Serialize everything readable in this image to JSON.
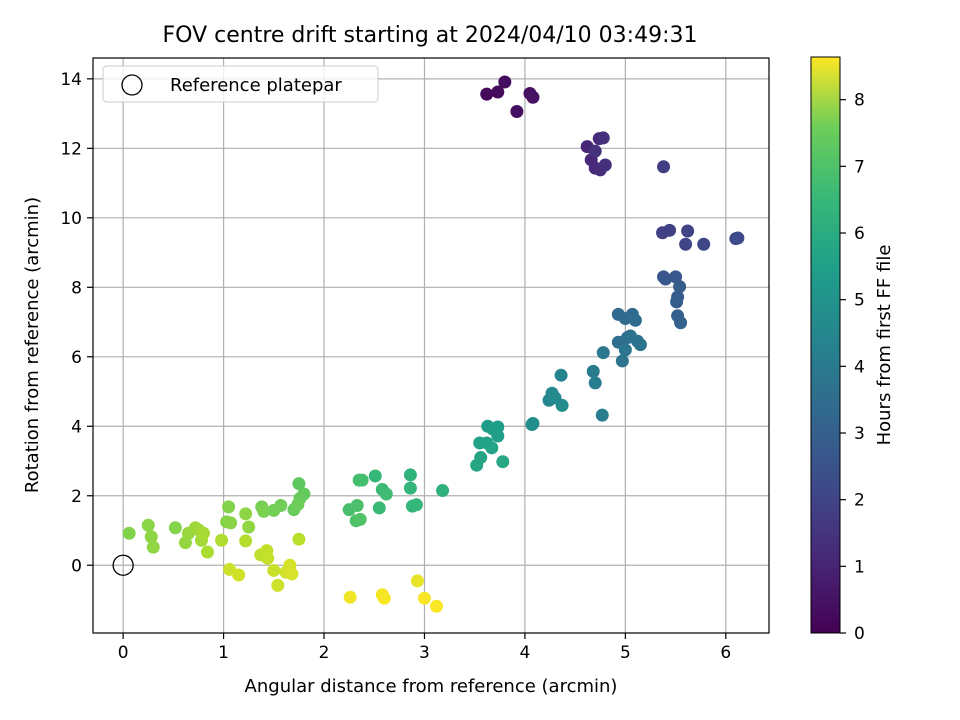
{
  "chart_data": {
    "type": "scatter",
    "title": "FOV centre drift starting at 2024/04/10 03:49:31",
    "xlabel": "Angular distance from reference (arcmin)",
    "ylabel": "Rotation from reference (arcmin)",
    "xlim": [
      -0.3,
      6.43
    ],
    "ylim": [
      -1.95,
      14.6
    ],
    "xticks": [
      0,
      1,
      2,
      3,
      4,
      5,
      6
    ],
    "yticks": [
      0,
      2,
      4,
      6,
      8,
      10,
      12,
      14
    ],
    "grid": true,
    "legend": {
      "placement": "top-left",
      "entries": [
        "Reference platepar"
      ]
    },
    "reference_point": {
      "x": 0,
      "y": 0,
      "marker": "open-circle"
    },
    "colorbar": {
      "label": "Hours from first FF file",
      "colormap": "viridis",
      "range": [
        0,
        8.64
      ],
      "ticks": [
        0,
        1,
        2,
        3,
        4,
        5,
        6,
        7,
        8
      ]
    },
    "points": [
      {
        "x": 3.62,
        "y": 13.56,
        "h": 0.2
      },
      {
        "x": 3.73,
        "y": 13.62,
        "h": 0.25
      },
      {
        "x": 3.8,
        "y": 13.91,
        "h": 0.3
      },
      {
        "x": 3.92,
        "y": 13.06,
        "h": 0.35
      },
      {
        "x": 4.05,
        "y": 13.58,
        "h": 0.4
      },
      {
        "x": 4.08,
        "y": 13.47,
        "h": 0.45
      },
      {
        "x": 4.62,
        "y": 12.05,
        "h": 0.9
      },
      {
        "x": 4.66,
        "y": 11.67,
        "h": 0.95
      },
      {
        "x": 4.7,
        "y": 11.43,
        "h": 1.0
      },
      {
        "x": 4.74,
        "y": 12.28,
        "h": 1.05
      },
      {
        "x": 4.75,
        "y": 11.38,
        "h": 1.1
      },
      {
        "x": 4.78,
        "y": 12.3,
        "h": 1.15
      },
      {
        "x": 4.8,
        "y": 11.52,
        "h": 1.2
      },
      {
        "x": 4.7,
        "y": 11.92,
        "h": 1.25
      },
      {
        "x": 5.38,
        "y": 11.47,
        "h": 1.6
      },
      {
        "x": 5.37,
        "y": 9.57,
        "h": 1.65
      },
      {
        "x": 5.44,
        "y": 9.64,
        "h": 1.7
      },
      {
        "x": 5.62,
        "y": 9.62,
        "h": 1.75
      },
      {
        "x": 5.6,
        "y": 9.24,
        "h": 1.8
      },
      {
        "x": 5.78,
        "y": 9.24,
        "h": 1.85
      },
      {
        "x": 6.1,
        "y": 9.4,
        "h": 1.9
      },
      {
        "x": 6.12,
        "y": 9.42,
        "h": 1.95
      },
      {
        "x": 5.38,
        "y": 8.3,
        "h": 2.3
      },
      {
        "x": 5.4,
        "y": 8.24,
        "h": 2.35
      },
      {
        "x": 5.5,
        "y": 8.3,
        "h": 2.4
      },
      {
        "x": 5.52,
        "y": 7.72,
        "h": 2.45
      },
      {
        "x": 5.54,
        "y": 8.02,
        "h": 2.5
      },
      {
        "x": 5.51,
        "y": 7.58,
        "h": 2.55
      },
      {
        "x": 5.52,
        "y": 7.18,
        "h": 2.6
      },
      {
        "x": 5.55,
        "y": 6.98,
        "h": 2.65
      },
      {
        "x": 4.93,
        "y": 7.22,
        "h": 2.9
      },
      {
        "x": 5.07,
        "y": 7.22,
        "h": 2.95
      },
      {
        "x": 5.0,
        "y": 7.1,
        "h": 3.0
      },
      {
        "x": 5.1,
        "y": 7.05,
        "h": 3.05
      },
      {
        "x": 4.93,
        "y": 6.42,
        "h": 3.1
      },
      {
        "x": 5.02,
        "y": 6.55,
        "h": 3.15
      },
      {
        "x": 5.05,
        "y": 6.6,
        "h": 3.2
      },
      {
        "x": 5.12,
        "y": 6.45,
        "h": 3.25
      },
      {
        "x": 5.15,
        "y": 6.35,
        "h": 3.3
      },
      {
        "x": 4.97,
        "y": 5.88,
        "h": 3.35
      },
      {
        "x": 5.0,
        "y": 6.2,
        "h": 3.4
      },
      {
        "x": 4.78,
        "y": 6.12,
        "h": 3.45
      },
      {
        "x": 4.68,
        "y": 5.58,
        "h": 3.6
      },
      {
        "x": 4.7,
        "y": 5.25,
        "h": 3.65
      },
      {
        "x": 4.77,
        "y": 4.32,
        "h": 3.7
      },
      {
        "x": 4.36,
        "y": 5.47,
        "h": 3.9
      },
      {
        "x": 4.24,
        "y": 4.75,
        "h": 4.0
      },
      {
        "x": 4.27,
        "y": 4.95,
        "h": 4.05
      },
      {
        "x": 4.3,
        "y": 4.82,
        "h": 4.1
      },
      {
        "x": 4.37,
        "y": 4.6,
        "h": 4.15
      },
      {
        "x": 4.07,
        "y": 4.05,
        "h": 4.25
      },
      {
        "x": 4.08,
        "y": 4.08,
        "h": 4.3
      },
      {
        "x": 3.63,
        "y": 4.0,
        "h": 4.7
      },
      {
        "x": 3.68,
        "y": 3.92,
        "h": 4.75
      },
      {
        "x": 3.73,
        "y": 3.98,
        "h": 4.8
      },
      {
        "x": 3.73,
        "y": 3.72,
        "h": 4.85
      },
      {
        "x": 3.55,
        "y": 3.52,
        "h": 4.9
      },
      {
        "x": 3.62,
        "y": 3.52,
        "h": 4.95
      },
      {
        "x": 3.67,
        "y": 3.38,
        "h": 5.0
      },
      {
        "x": 3.56,
        "y": 3.1,
        "h": 5.05
      },
      {
        "x": 3.52,
        "y": 2.88,
        "h": 5.1
      },
      {
        "x": 3.78,
        "y": 2.98,
        "h": 5.15
      },
      {
        "x": 3.18,
        "y": 2.15,
        "h": 5.5
      },
      {
        "x": 2.86,
        "y": 2.6,
        "h": 5.6
      },
      {
        "x": 2.86,
        "y": 2.22,
        "h": 5.65
      },
      {
        "x": 2.88,
        "y": 1.7,
        "h": 5.7
      },
      {
        "x": 2.92,
        "y": 1.74,
        "h": 5.75
      },
      {
        "x": 2.51,
        "y": 2.57,
        "h": 5.8
      },
      {
        "x": 2.55,
        "y": 1.65,
        "h": 5.85
      },
      {
        "x": 2.58,
        "y": 2.18,
        "h": 5.9
      },
      {
        "x": 2.62,
        "y": 2.05,
        "h": 5.95
      },
      {
        "x": 2.35,
        "y": 2.45,
        "h": 6.0
      },
      {
        "x": 2.38,
        "y": 2.45,
        "h": 6.05
      },
      {
        "x": 2.25,
        "y": 1.6,
        "h": 6.1
      },
      {
        "x": 2.33,
        "y": 1.72,
        "h": 6.15
      },
      {
        "x": 2.32,
        "y": 1.28,
        "h": 6.2
      },
      {
        "x": 2.36,
        "y": 1.32,
        "h": 6.25
      },
      {
        "x": 1.75,
        "y": 2.35,
        "h": 6.5
      },
      {
        "x": 1.8,
        "y": 2.05,
        "h": 6.55
      },
      {
        "x": 1.76,
        "y": 1.92,
        "h": 6.6
      },
      {
        "x": 1.7,
        "y": 1.6,
        "h": 6.65
      },
      {
        "x": 1.74,
        "y": 1.75,
        "h": 6.7
      },
      {
        "x": 1.57,
        "y": 1.72,
        "h": 6.75
      },
      {
        "x": 1.5,
        "y": 1.58,
        "h": 6.8
      },
      {
        "x": 1.38,
        "y": 1.68,
        "h": 6.85
      },
      {
        "x": 1.4,
        "y": 1.55,
        "h": 6.9
      },
      {
        "x": 1.05,
        "y": 1.68,
        "h": 7.0
      },
      {
        "x": 1.03,
        "y": 1.25,
        "h": 7.05
      },
      {
        "x": 1.07,
        "y": 1.22,
        "h": 7.1
      },
      {
        "x": 1.22,
        "y": 1.48,
        "h": 7.15
      },
      {
        "x": 1.25,
        "y": 1.1,
        "h": 7.2
      },
      {
        "x": 0.25,
        "y": 1.15,
        "h": 7.1
      },
      {
        "x": 0.28,
        "y": 0.82,
        "h": 7.15
      },
      {
        "x": 0.3,
        "y": 0.52,
        "h": 7.2
      },
      {
        "x": 0.06,
        "y": 0.92,
        "h": 7.0
      },
      {
        "x": 0.52,
        "y": 1.08,
        "h": 7.05
      },
      {
        "x": 0.62,
        "y": 0.65,
        "h": 7.25
      },
      {
        "x": 0.65,
        "y": 0.92,
        "h": 7.3
      },
      {
        "x": 0.72,
        "y": 1.08,
        "h": 7.35
      },
      {
        "x": 0.75,
        "y": 1.02,
        "h": 7.4
      },
      {
        "x": 0.78,
        "y": 0.72,
        "h": 7.45
      },
      {
        "x": 0.8,
        "y": 0.92,
        "h": 7.5
      },
      {
        "x": 0.84,
        "y": 0.38,
        "h": 7.55
      },
      {
        "x": 0.98,
        "y": 0.72,
        "h": 7.6
      },
      {
        "x": 1.22,
        "y": 0.7,
        "h": 7.65
      },
      {
        "x": 1.37,
        "y": 0.3,
        "h": 7.8
      },
      {
        "x": 1.43,
        "y": 0.42,
        "h": 7.85
      },
      {
        "x": 1.44,
        "y": 0.2,
        "h": 7.9
      },
      {
        "x": 1.5,
        "y": -0.15,
        "h": 7.95
      },
      {
        "x": 1.54,
        "y": -0.58,
        "h": 8.0
      },
      {
        "x": 1.62,
        "y": -0.2,
        "h": 8.05
      },
      {
        "x": 1.66,
        "y": 0.0,
        "h": 8.1
      },
      {
        "x": 1.68,
        "y": -0.25,
        "h": 8.15
      },
      {
        "x": 1.75,
        "y": 0.75,
        "h": 7.75
      },
      {
        "x": 1.06,
        "y": -0.12,
        "h": 8.0
      },
      {
        "x": 1.15,
        "y": -0.28,
        "h": 8.05
      },
      {
        "x": 2.26,
        "y": -0.92,
        "h": 8.45
      },
      {
        "x": 2.58,
        "y": -0.85,
        "h": 8.5
      },
      {
        "x": 2.6,
        "y": -0.95,
        "h": 8.55
      },
      {
        "x": 2.93,
        "y": -0.45,
        "h": 8.35
      },
      {
        "x": 3.0,
        "y": -0.95,
        "h": 8.58
      },
      {
        "x": 3.12,
        "y": -1.18,
        "h": 8.62
      }
    ]
  }
}
